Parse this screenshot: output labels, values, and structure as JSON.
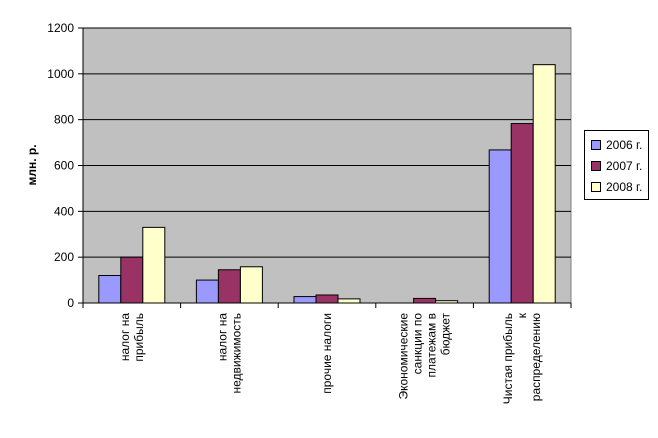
{
  "chart_data": {
    "type": "bar",
    "title": "",
    "xlabel": "",
    "ylabel": "млн. р.",
    "ylim": [
      0,
      1200
    ],
    "yticks": [
      0,
      200,
      400,
      600,
      800,
      1000,
      1200
    ],
    "grid": true,
    "legend_position": "right",
    "categories": [
      [
        "налог на",
        "прибыль"
      ],
      [
        "налог на",
        "недвижимость"
      ],
      [
        "прочие налоги"
      ],
      [
        "Экономические",
        "санкции по",
        "платежам в",
        "бюджет"
      ],
      [
        "Чистая прибыль",
        "к",
        "распределению"
      ]
    ],
    "series": [
      {
        "name": "2006 г.",
        "color": "#9999ff",
        "values": [
          120,
          100,
          28,
          0,
          668
        ]
      },
      {
        "name": "2007 г.",
        "color": "#993366",
        "values": [
          200,
          145,
          35,
          20,
          783
        ]
      },
      {
        "name": "2008 г.",
        "color": "#ffffcc",
        "values": [
          330,
          158,
          18,
          10,
          1040
        ]
      }
    ],
    "plot_background": "#c0c0c0"
  }
}
